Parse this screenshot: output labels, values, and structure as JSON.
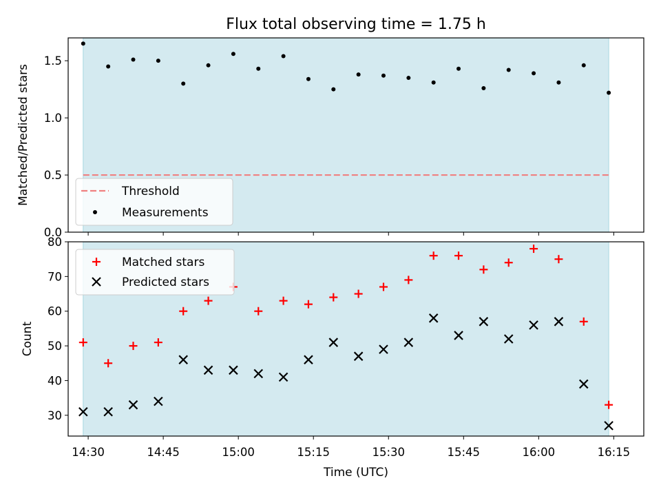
{
  "title": "Flux total observing time = 1.75 h",
  "chart_data": [
    {
      "type": "scatter",
      "panel": "top",
      "ylabel": "Matched/Predicted stars",
      "ylim": [
        0,
        1.7
      ],
      "yticks": [
        0.0,
        0.5,
        1.0,
        1.5
      ],
      "ytick_labels": [
        "0.0",
        "0.5",
        "1.0",
        "1.5"
      ],
      "observing_window": [
        "14:29",
        "16:14"
      ],
      "threshold": {
        "name": "Threshold",
        "y": 0.5,
        "x": [
          "14:29",
          "16:14"
        ],
        "color": "#f08080",
        "style": "dashed"
      },
      "series": [
        {
          "name": "Measurements",
          "color": "#000000",
          "x": [
            "14:29",
            "14:34",
            "14:39",
            "14:44",
            "14:49",
            "14:54",
            "14:59",
            "15:04",
            "15:09",
            "15:14",
            "15:19",
            "15:24",
            "15:29",
            "15:34",
            "15:39",
            "15:44",
            "15:49",
            "15:54",
            "15:59",
            "16:04",
            "16:09",
            "16:14"
          ],
          "y": [
            1.65,
            1.45,
            1.51,
            1.5,
            1.3,
            1.46,
            1.56,
            1.43,
            1.54,
            1.34,
            1.25,
            1.38,
            1.37,
            1.35,
            1.31,
            1.43,
            1.26,
            1.42,
            1.39,
            1.31,
            1.46,
            1.22
          ]
        }
      ],
      "legend": "lower-left"
    },
    {
      "type": "scatter",
      "panel": "bottom",
      "xlabel": "Time (UTC)",
      "ylabel": "Count",
      "ylim": [
        24,
        80
      ],
      "yticks": [
        30,
        40,
        50,
        60,
        70,
        80
      ],
      "ytick_labels": [
        "30",
        "40",
        "50",
        "60",
        "70",
        "80"
      ],
      "xlim": [
        "14:26",
        "16:21"
      ],
      "xticks": [
        "14:30",
        "14:45",
        "15:00",
        "15:15",
        "15:30",
        "15:45",
        "16:00",
        "16:15"
      ],
      "observing_window": [
        "14:29",
        "16:14"
      ],
      "series": [
        {
          "name": "Matched stars",
          "marker": "+",
          "color": "#ff0000",
          "x": [
            "14:29",
            "14:34",
            "14:39",
            "14:44",
            "14:49",
            "14:54",
            "14:59",
            "15:04",
            "15:09",
            "15:14",
            "15:19",
            "15:24",
            "15:29",
            "15:34",
            "15:39",
            "15:44",
            "15:49",
            "15:54",
            "15:59",
            "16:04",
            "16:09",
            "16:14"
          ],
          "y": [
            51,
            45,
            50,
            51,
            60,
            63,
            67,
            60,
            63,
            62,
            64,
            65,
            67,
            69,
            76,
            76,
            72,
            74,
            78,
            75,
            57,
            33
          ]
        },
        {
          "name": "Predicted stars",
          "marker": "x",
          "color": "#000000",
          "x": [
            "14:29",
            "14:34",
            "14:39",
            "14:44",
            "14:49",
            "14:54",
            "14:59",
            "15:04",
            "15:09",
            "15:14",
            "15:19",
            "15:24",
            "15:29",
            "15:34",
            "15:39",
            "15:44",
            "15:49",
            "15:54",
            "15:59",
            "16:04",
            "16:09",
            "16:14"
          ],
          "y": [
            31,
            31,
            33,
            34,
            46,
            43,
            43,
            42,
            41,
            46,
            51,
            47,
            49,
            51,
            58,
            53,
            57,
            52,
            56,
            57,
            39,
            27
          ]
        }
      ],
      "legend": "top-left"
    }
  ],
  "colors": {
    "window_fill": "#d4eaf0",
    "window_edge": "#a8d8e0"
  }
}
